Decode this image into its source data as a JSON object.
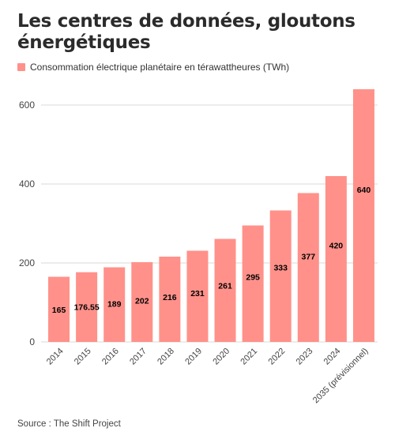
{
  "title": "Les centres de données, gloutons énergétiques",
  "source": "Source : The Shift Project",
  "colors": {
    "bar": "#ff918a",
    "grid": "#d9d9d9",
    "axis": "#444444",
    "label": "#000000"
  },
  "chart_data": {
    "type": "bar",
    "categories": [
      "2014",
      "2015",
      "2016",
      "2017",
      "2018",
      "2019",
      "2020",
      "2021",
      "2022",
      "2023",
      "2024",
      "2035 (prévisionnel)"
    ],
    "series": [
      {
        "name": "Consommation électrique planétaire en térawattheures (TWh)",
        "values": [
          165,
          176.55,
          189,
          202,
          216,
          231,
          261,
          295,
          333,
          377,
          420,
          640
        ]
      }
    ],
    "data_labels": [
      "165",
      "176.55",
      "189",
      "202",
      "216",
      "231",
      "261",
      "295",
      "333",
      "377",
      "420",
      "640"
    ],
    "yticks": [
      0,
      200,
      400,
      600
    ],
    "ylim": [
      0,
      660
    ],
    "grid": true,
    "legend": "top-left",
    "xlabel": "",
    "ylabel": ""
  }
}
